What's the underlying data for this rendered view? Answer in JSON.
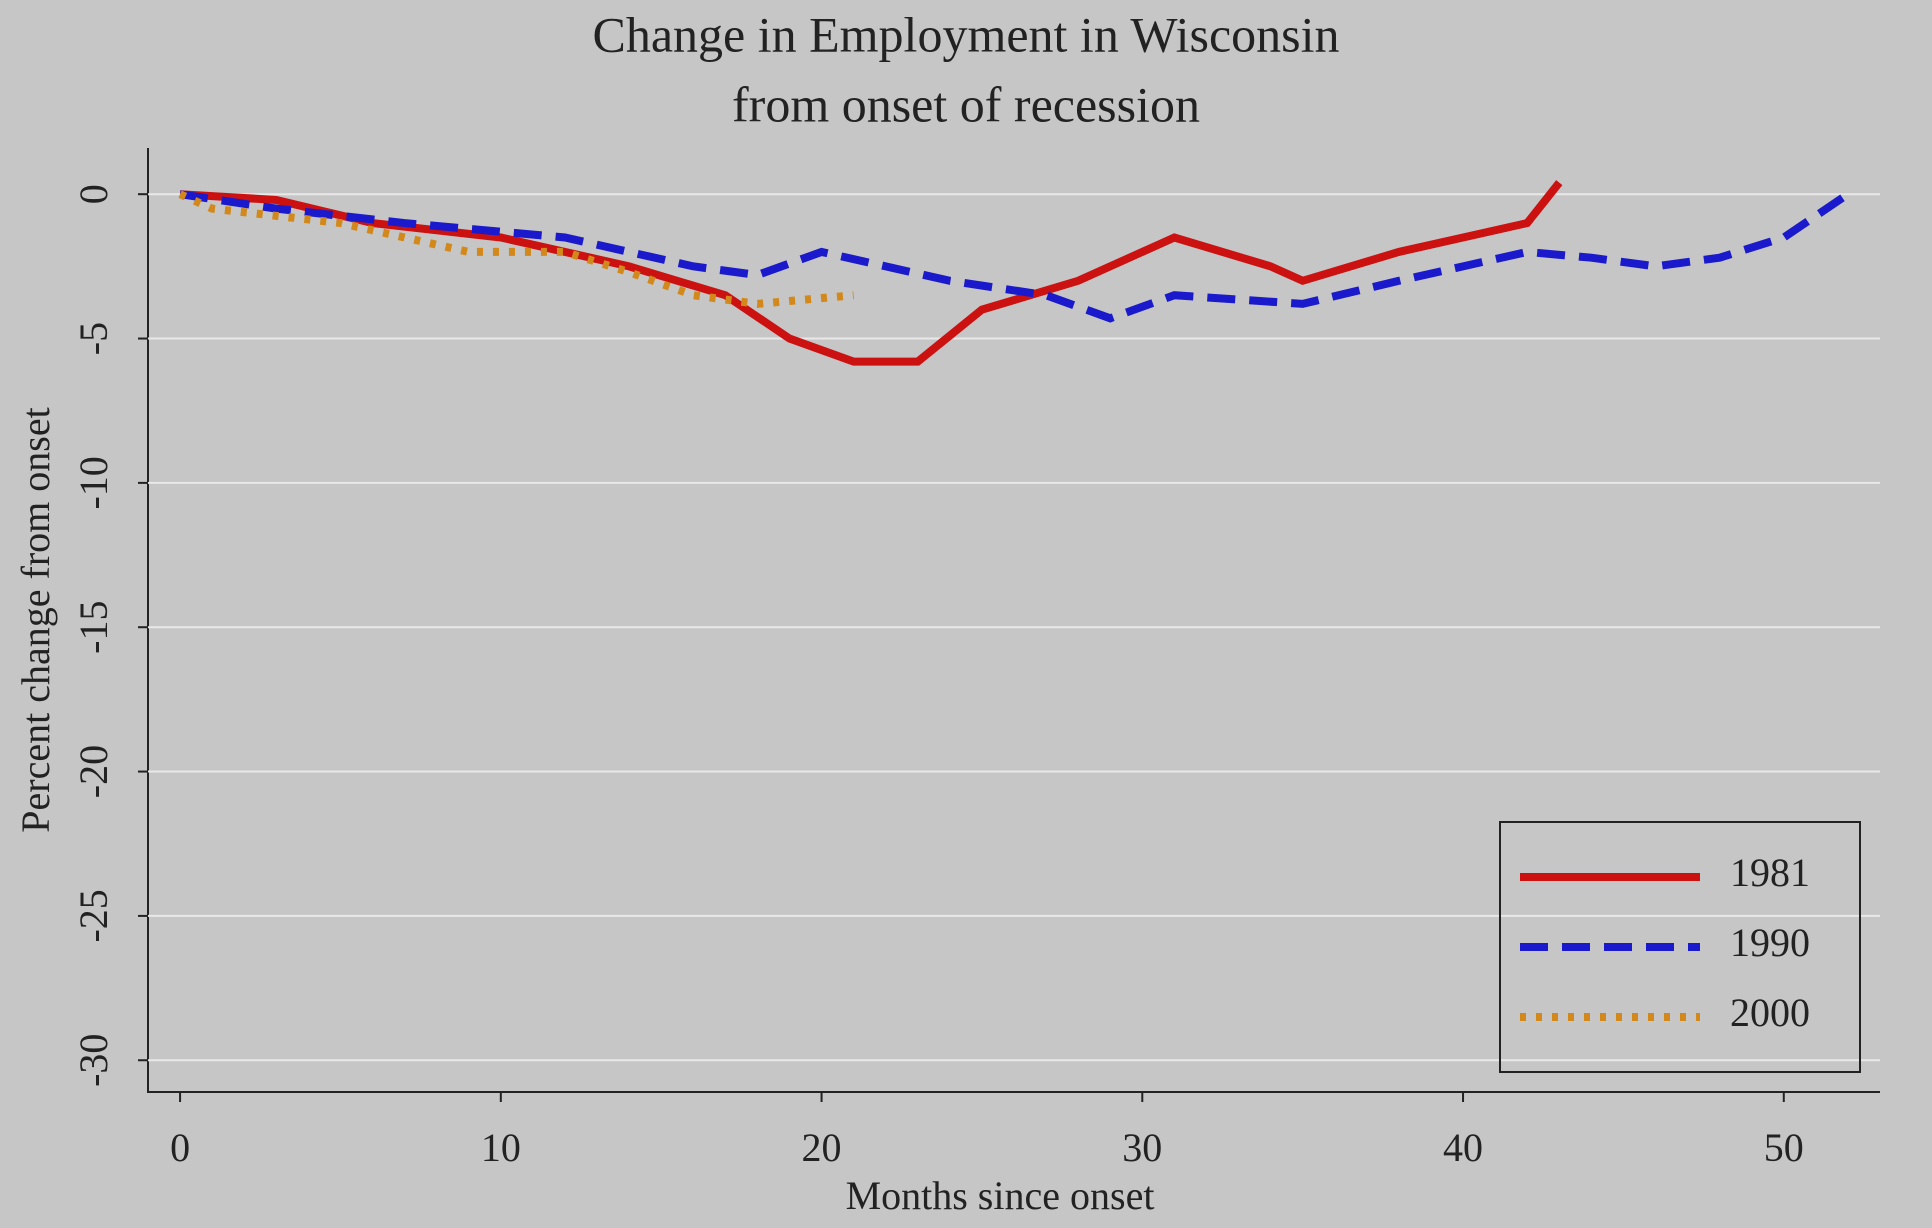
{
  "chart_data": {
    "type": "line",
    "title": "Change in Employment in Wisconsin",
    "subtitle": "from onset of recession",
    "x_label": "Months since onset",
    "y_label": "Percent change from onset",
    "xlim": [
      -1,
      53
    ],
    "xticks": [
      0,
      10,
      20,
      30,
      40,
      50
    ],
    "ylim": [
      -31.1,
      1.6
    ],
    "yticks": [
      0,
      -5,
      -10,
      -15,
      -20,
      -25,
      -30
    ],
    "grid": true,
    "legend": "bottom-right",
    "series": [
      {
        "name": "1981",
        "color": "#cc1111",
        "dash": "solid",
        "x": [
          0,
          3,
          6,
          10,
          14,
          17,
          19,
          21,
          23,
          25,
          28,
          31,
          34,
          35,
          38,
          40,
          42,
          43
        ],
        "values": [
          0,
          -0.2,
          -1,
          -1.5,
          -2.5,
          -3.5,
          -5,
          -5.8,
          -5.8,
          -4,
          -3,
          -1.5,
          -2.5,
          -3,
          -2,
          -1.5,
          -1,
          0.4
        ]
      },
      {
        "name": "1990",
        "color": "#1a1acc",
        "dash": "dashed",
        "x": [
          0,
          3,
          7,
          12,
          16,
          18,
          20,
          24,
          27,
          29,
          31,
          35,
          38,
          40,
          42,
          44,
          46,
          48,
          50,
          52
        ],
        "values": [
          0,
          -0.5,
          -1,
          -1.5,
          -2.5,
          -2.8,
          -2,
          -3,
          -3.5,
          -4.3,
          -3.5,
          -3.8,
          -3,
          -2.5,
          -2,
          -2.2,
          -2.5,
          -2.2,
          -1.5,
          0
        ]
      },
      {
        "name": "2000",
        "color": "#d2881a",
        "dash": "dotted",
        "x": [
          0,
          1,
          5,
          9,
          12,
          14,
          16,
          18,
          21
        ],
        "values": [
          0,
          -0.5,
          -1,
          -2,
          -2,
          -2.7,
          -3.5,
          -3.8,
          -3.5
        ]
      }
    ]
  }
}
